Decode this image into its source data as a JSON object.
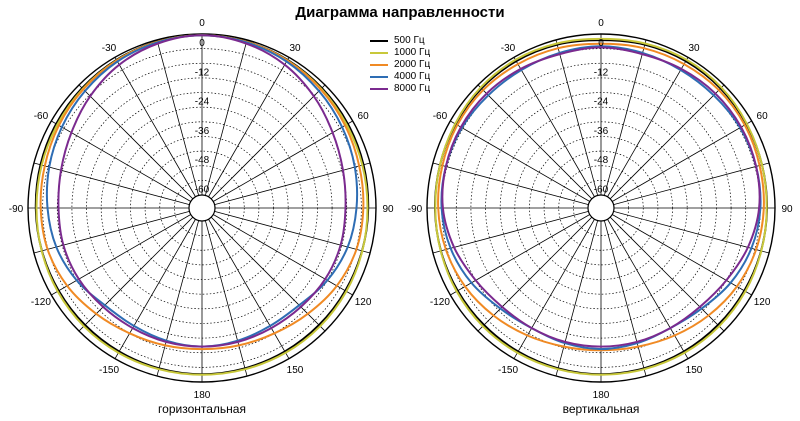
{
  "chart_data": {
    "type": "polar",
    "title": "Диаграмма направленности",
    "angle_labels": [
      "0",
      "30",
      "60",
      "90",
      "120",
      "150",
      "180",
      "-150",
      "-120",
      "-90",
      "-60",
      "-30"
    ],
    "angle_values": [
      0,
      30,
      60,
      90,
      120,
      150,
      180,
      -150,
      -120,
      -90,
      -60,
      -30
    ],
    "radial_labels": [
      "0",
      "-12",
      "-24",
      "-36",
      "-48",
      "-60"
    ],
    "radial_values": [
      0,
      -12,
      -24,
      -36,
      -48,
      -60
    ],
    "radial_range": [
      -66,
      0
    ],
    "grid": true,
    "legend_position": "top-center",
    "legend": [
      {
        "name": "500 Гц",
        "color": "#000000"
      },
      {
        "name": "1000 Гц",
        "color": "#c8c83a"
      },
      {
        "name": "2000 Гц",
        "color": "#f08a24"
      },
      {
        "name": "4000 Гц",
        "color": "#2e6db4"
      },
      {
        "name": "8000 Гц",
        "color": "#7b2a8f"
      }
    ],
    "angles": [
      0,
      15,
      30,
      45,
      60,
      75,
      90,
      105,
      120,
      135,
      150,
      165,
      180,
      195,
      210,
      225,
      240,
      255,
      270,
      285,
      300,
      315,
      330,
      345
    ],
    "charts": [
      {
        "subtitle": "горизонтальная",
        "series": [
          {
            "name": "500 Гц",
            "values": [
              -0.5,
              -0.7,
              -1.2,
              -1.8,
              -2.3,
              -2.8,
              -3.2,
              -3.4,
              -3.5,
              -3.5,
              -3.4,
              -3.3,
              -3.2,
              -3.3,
              -3.4,
              -3.5,
              -3.5,
              -3.4,
              -3.2,
              -2.8,
              -2.3,
              -1.8,
              -1.2,
              -0.7
            ]
          },
          {
            "name": "1000 Гц",
            "values": [
              -0.5,
              -0.8,
              -1.4,
              -2.2,
              -2.9,
              -3.3,
              -3.5,
              -3.3,
              -3.0,
              -2.8,
              -2.8,
              -2.9,
              -3.0,
              -2.9,
              -2.8,
              -2.8,
              -3.0,
              -3.3,
              -3.5,
              -3.3,
              -2.9,
              -2.2,
              -1.4,
              -0.8
            ]
          },
          {
            "name": "2000 Гц",
            "values": [
              -0.5,
              -0.8,
              -1.5,
              -2.5,
              -3.6,
              -4.6,
              -5.2,
              -5.8,
              -7.5,
              -10.0,
              -12.0,
              -13.0,
              -13.5,
              -13.0,
              -12.0,
              -10.0,
              -7.5,
              -5.8,
              -5.2,
              -4.6,
              -3.6,
              -2.5,
              -1.5,
              -0.8
            ]
          },
          {
            "name": "4000 Гц",
            "values": [
              -0.5,
              -1.0,
              -2.0,
              -3.5,
              -5.0,
              -6.5,
              -8.0,
              -9.5,
              -12.0,
              -15.0,
              -15.5,
              -15.0,
              -14.5,
              -15.0,
              -15.5,
              -15.0,
              -12.0,
              -9.5,
              -8.0,
              -6.5,
              -5.0,
              -3.5,
              -2.0,
              -1.0
            ]
          },
          {
            "name": "8000 Гц",
            "values": [
              -0.5,
              -1.5,
              -3.5,
              -6.5,
              -9.5,
              -11.5,
              -12.5,
              -12.5,
              -13.0,
              -14.0,
              -14.5,
              -14.5,
              -14.5,
              -14.5,
              -14.5,
              -14.0,
              -13.0,
              -12.5,
              -12.5,
              -11.5,
              -9.5,
              -6.5,
              -3.5,
              -1.5
            ]
          }
        ]
      },
      {
        "subtitle": "вертикальная",
        "series": [
          {
            "name": "500 Гц",
            "values": [
              -2.5,
              -2.0,
              -1.8,
              -2.0,
              -2.5,
              -3.0,
              -3.3,
              -3.4,
              -3.5,
              -3.5,
              -3.4,
              -3.3,
              -3.2,
              -3.3,
              -3.4,
              -3.5,
              -3.5,
              -3.4,
              -3.3,
              -3.0,
              -2.5,
              -2.0,
              -1.8,
              -2.0
            ]
          },
          {
            "name": "1000 Гц",
            "values": [
              -2.0,
              -1.5,
              -1.2,
              -1.5,
              -2.3,
              -3.0,
              -3.4,
              -3.3,
              -3.0,
              -2.8,
              -2.8,
              -2.9,
              -3.0,
              -2.9,
              -2.8,
              -2.8,
              -3.0,
              -3.3,
              -3.4,
              -3.0,
              -2.3,
              -1.5,
              -1.2,
              -1.5
            ]
          },
          {
            "name": "2000 Гц",
            "values": [
              -4.0,
              -3.5,
              -3.2,
              -3.0,
              -3.3,
              -4.0,
              -4.6,
              -5.5,
              -7.0,
              -9.0,
              -11.0,
              -12.5,
              -13.0,
              -12.5,
              -11.0,
              -9.0,
              -7.0,
              -5.5,
              -4.6,
              -4.0,
              -3.3,
              -3.0,
              -3.2,
              -3.5
            ]
          },
          {
            "name": "4000 Гц",
            "values": [
              -5.0,
              -5.5,
              -6.0,
              -6.0,
              -5.5,
              -5.5,
              -6.0,
              -7.5,
              -10.0,
              -13.0,
              -14.5,
              -14.0,
              -13.5,
              -14.0,
              -14.5,
              -13.0,
              -10.0,
              -7.5,
              -6.0,
              -5.5,
              -5.5,
              -6.0,
              -6.0,
              -5.5
            ]
          },
          {
            "name": "8000 Гц",
            "values": [
              -5.5,
              -6.0,
              -5.5,
              -5.0,
              -5.0,
              -5.5,
              -6.5,
              -9.0,
              -12.0,
              -14.0,
              -14.5,
              -14.5,
              -14.5,
              -14.5,
              -14.5,
              -14.0,
              -12.0,
              -9.0,
              -6.5,
              -5.5,
              -5.0,
              -5.0,
              -5.5,
              -6.0
            ]
          }
        ]
      }
    ]
  }
}
